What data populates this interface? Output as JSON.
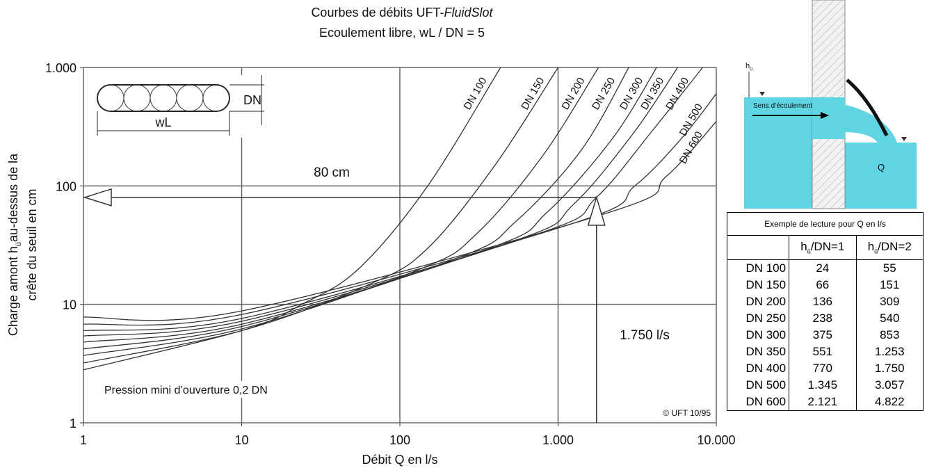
{
  "chart_data": {
    "type": "line",
    "title": {
      "prefix": "Courbes de débits UFT-",
      "italic": "FluidSlot"
    },
    "subtitle": "Ecoulement libre, wL / DN = 5",
    "x_label": "Débit Q en l/s",
    "y_label": {
      "line1_start": "Charge amont h",
      "line1_sub": "ü",
      "line1_end": "au-dessus de la",
      "line2": "crête du  seuil  en cm"
    },
    "log_x": true,
    "log_y": true,
    "grid": true,
    "color": "#333333",
    "xlim": [
      1,
      10000
    ],
    "ylim": [
      1,
      1000
    ],
    "xticks": [
      1,
      10,
      100,
      {
        "value": 1000,
        "label": "1.000"
      },
      {
        "value": 10000,
        "label": "10.000"
      }
    ],
    "yticks": [
      1,
      10,
      100,
      {
        "value": 1000,
        "label": "1.000"
      }
    ],
    "series": [
      {
        "name": "DN 100",
        "x": [
          1,
          10,
          24,
          55,
          150,
          433
        ],
        "values": [
          2.8,
          6,
          10,
          20,
          100,
          1000
        ]
      },
      {
        "name": "DN 150",
        "x": [
          1,
          10,
          66,
          151,
          400,
          1000
        ],
        "values": [
          3.2,
          6,
          15,
          30,
          150,
          1000
        ]
      },
      {
        "name": "DN 200",
        "x": [
          1,
          10,
          136,
          309,
          800,
          1800
        ],
        "values": [
          3.7,
          6.2,
          20,
          40,
          180,
          1000
        ]
      },
      {
        "name": "DN 250",
        "x": [
          1,
          10,
          238,
          540,
          1400,
          2800
        ],
        "values": [
          4.2,
          6.5,
          25,
          50,
          200,
          1000
        ]
      },
      {
        "name": "DN 300",
        "x": [
          1,
          10,
          375,
          853,
          2200,
          4200
        ],
        "values": [
          4.8,
          6.8,
          30,
          60,
          250,
          1000
        ]
      },
      {
        "name": "DN 350",
        "x": [
          1,
          10,
          551,
          1253,
          3000,
          5700
        ],
        "values": [
          5.4,
          7.2,
          35,
          70,
          280,
          1000
        ]
      },
      {
        "name": "DN 400",
        "x": [
          1,
          10,
          770,
          1750,
          4000,
          8200
        ],
        "values": [
          6,
          7.6,
          40,
          80,
          300,
          1000
        ]
      },
      {
        "name": "DN 500",
        "x": [
          1,
          10,
          1345,
          3057,
          6000,
          10000
        ],
        "values": [
          6.8,
          8.2,
          50,
          100,
          250,
          600
        ]
      },
      {
        "name": "DN 600",
        "x": [
          1,
          10,
          2121,
          4822,
          10000
        ],
        "values": [
          7.8,
          8.8,
          60,
          120,
          350
        ]
      }
    ],
    "reference": {
      "x": 1750,
      "y": 80,
      "x_label": "1.750 l/s",
      "y_label": "80 cm"
    },
    "annotations": {
      "pressure": "Pression mini d’ouverture 0,2 DN",
      "copyright": "© UFT 10/95"
    },
    "inset": {
      "dn_label": "DN",
      "wl_label": "wL"
    }
  },
  "diagram": {
    "h_label": "h",
    "h_sub": "ü",
    "flow_label": "Sens d’écoulement",
    "q_label": "Q"
  },
  "table": {
    "title": "Exemple de lecture pour Q en l/s",
    "headers": [
      {
        "h": "h",
        "sub": "ü",
        "rest": "/DN=1"
      },
      {
        "h": "h",
        "sub": "ü",
        "rest": "/DN=2"
      }
    ],
    "rows": [
      [
        "DN 100",
        "24",
        "55"
      ],
      [
        "DN 150",
        "66",
        "151"
      ],
      [
        "DN 200",
        "136",
        "309"
      ],
      [
        "DN 250",
        "238",
        "540"
      ],
      [
        "DN 300",
        "375",
        "853"
      ],
      [
        "DN 350",
        "551",
        "1.253"
      ],
      [
        "DN 400",
        "770",
        "1.750"
      ],
      [
        "DN 500",
        "1.345",
        "3.057"
      ],
      [
        "DN 600",
        "2.121",
        "4.822"
      ]
    ]
  }
}
